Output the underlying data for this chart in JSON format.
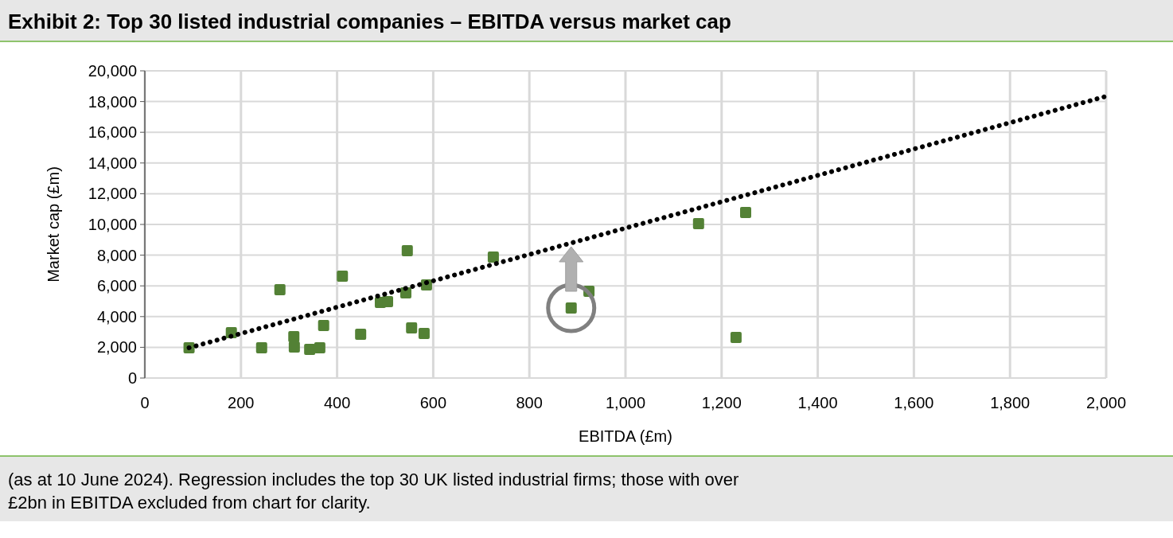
{
  "chart_data": {
    "type": "scatter",
    "title": "Exhibit 2: Top 30 listed industrial companies – EBITDA versus market cap",
    "xlabel": "EBITDA (£m)",
    "ylabel": "Market cap (£m)",
    "xlim": [
      0,
      2000
    ],
    "xticks": [
      0,
      200,
      400,
      600,
      800,
      {
        "value": 1000,
        "label": "1,000"
      },
      {
        "value": 1200,
        "label": "1,200"
      },
      {
        "value": 1400,
        "label": "1,400"
      },
      {
        "value": 1600,
        "label": "1,600"
      },
      {
        "value": 1800,
        "label": "1,800"
      },
      {
        "value": 2000,
        "label": "2,000"
      }
    ],
    "ylim": [
      0,
      20000
    ],
    "yticks": [
      0,
      {
        "value": 2000,
        "label": "2,000"
      },
      {
        "value": 4000,
        "label": "4,000"
      },
      {
        "value": 6000,
        "label": "6,000"
      },
      {
        "value": 8000,
        "label": "8,000"
      },
      {
        "value": 10000,
        "label": "10,000"
      },
      {
        "value": 12000,
        "label": "12,000"
      },
      {
        "value": 14000,
        "label": "14,000"
      },
      {
        "value": 16000,
        "label": "16,000"
      },
      {
        "value": 18000,
        "label": "18,000"
      },
      {
        "value": 20000,
        "label": "20,000"
      }
    ],
    "grid": true,
    "marker": "square",
    "series": [
      {
        "color": "#538135",
        "x": [
          92,
          180,
          243,
          281,
          310,
          311,
          343,
          364,
          372,
          411,
          449,
          490,
          505,
          546,
          543,
          555,
          581,
          586,
          725,
          887,
          924,
          1152,
          1250,
          1230
        ],
        "values": [
          1970,
          2950,
          1970,
          5750,
          2690,
          2020,
          1870,
          1970,
          3420,
          6630,
          2850,
          4920,
          4970,
          8290,
          5540,
          3260,
          2900,
          6060,
          7870,
          4560,
          5650,
          10050,
          10780,
          2640
        ]
      },
      {
        "type": "line",
        "color": "#000000",
        "line_style": "dotted",
        "marker": "none",
        "x": [
          92,
          2000
        ],
        "values": [
          1970,
          18340
        ]
      }
    ],
    "annotations": [
      "(as at 10 June 2024). Regression includes the top 30 UK listed industrial firms; those with over £2bn in EBITDA excluded from chart for clarity."
    ]
  }
}
